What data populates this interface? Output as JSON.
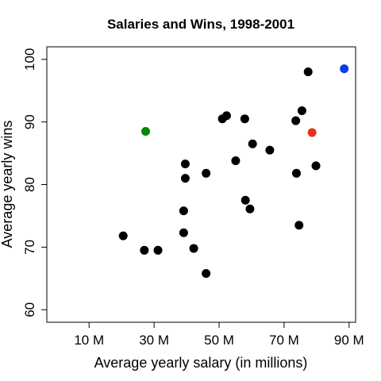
{
  "chart_data": {
    "type": "scatter",
    "title": "Salaries and Wins, 1998-2001",
    "xlabel": "Average yearly salary (in millions)",
    "ylabel": "Average yearly wins",
    "xlim": [
      -3,
      92
    ],
    "ylim": [
      58,
      102
    ],
    "x_ticks": [
      {
        "value": 10,
        "label": "10 M"
      },
      {
        "value": 30,
        "label": "30 M"
      },
      {
        "value": 50,
        "label": "50 M"
      },
      {
        "value": 70,
        "label": "70 M"
      },
      {
        "value": 90,
        "label": "90 M"
      }
    ],
    "y_ticks": [
      {
        "value": 60,
        "label": "60"
      },
      {
        "value": 70,
        "label": "70"
      },
      {
        "value": 80,
        "label": "80"
      },
      {
        "value": 90,
        "label": "90"
      },
      {
        "value": 100,
        "label": "100"
      }
    ],
    "grid": false,
    "colors": {
      "default": "#000000",
      "green": "#008a00",
      "red": "#e8321e",
      "blue": "#0d3be8"
    },
    "points": [
      {
        "x": 20.5,
        "y": 71.8,
        "color": "default"
      },
      {
        "x": 27.0,
        "y": 69.5,
        "color": "default"
      },
      {
        "x": 31.2,
        "y": 69.5,
        "color": "default"
      },
      {
        "x": 27.4,
        "y": 88.5,
        "color": "green"
      },
      {
        "x": 39.1,
        "y": 75.8,
        "color": "default"
      },
      {
        "x": 39.1,
        "y": 72.3,
        "color": "default"
      },
      {
        "x": 39.6,
        "y": 83.3,
        "color": "default"
      },
      {
        "x": 39.6,
        "y": 81.0,
        "color": "default"
      },
      {
        "x": 42.2,
        "y": 69.8,
        "color": "default"
      },
      {
        "x": 46.0,
        "y": 81.8,
        "color": "default"
      },
      {
        "x": 46.0,
        "y": 65.8,
        "color": "default"
      },
      {
        "x": 51.0,
        "y": 90.5,
        "color": "default"
      },
      {
        "x": 52.3,
        "y": 91.0,
        "color": "default"
      },
      {
        "x": 55.1,
        "y": 83.8,
        "color": "default"
      },
      {
        "x": 57.9,
        "y": 90.5,
        "color": "default"
      },
      {
        "x": 58.1,
        "y": 77.5,
        "color": "default"
      },
      {
        "x": 59.5,
        "y": 76.1,
        "color": "default"
      },
      {
        "x": 60.3,
        "y": 86.5,
        "color": "default"
      },
      {
        "x": 65.6,
        "y": 85.5,
        "color": "default"
      },
      {
        "x": 73.6,
        "y": 90.2,
        "color": "default"
      },
      {
        "x": 73.8,
        "y": 81.8,
        "color": "default"
      },
      {
        "x": 74.6,
        "y": 73.5,
        "color": "default"
      },
      {
        "x": 75.5,
        "y": 91.8,
        "color": "default"
      },
      {
        "x": 77.4,
        "y": 98.0,
        "color": "default"
      },
      {
        "x": 78.6,
        "y": 88.3,
        "color": "red"
      },
      {
        "x": 79.8,
        "y": 83.0,
        "color": "default"
      },
      {
        "x": 88.5,
        "y": 98.5,
        "color": "blue"
      }
    ]
  }
}
